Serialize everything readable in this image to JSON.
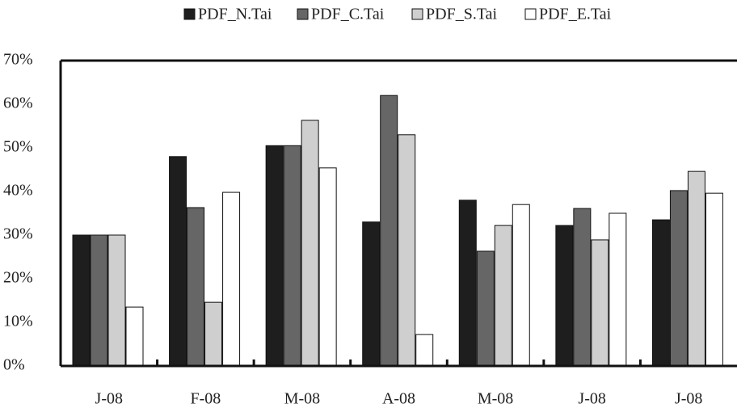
{
  "chart_data": {
    "type": "bar",
    "categories": [
      "J-08",
      "F-08",
      "M-08",
      "A-08",
      "M-08",
      "J-08",
      "J-08"
    ],
    "series": [
      {
        "name": "PDF_N.Tai",
        "color": "#1e1e1e",
        "values": [
          30,
          48,
          50.5,
          33,
          38,
          32.2,
          33.5
        ]
      },
      {
        "name": "PDF_C.Tai",
        "color": "#666666",
        "values": [
          30,
          36.3,
          50.5,
          62,
          26.3,
          36.1,
          40.2
        ]
      },
      {
        "name": "PDF_S.Tai",
        "color": "#cfcfcf",
        "values": [
          30,
          14.6,
          56.3,
          53,
          32.2,
          28.9,
          44.6
        ]
      },
      {
        "name": "PDF_E.Tai",
        "color": "#ffffff",
        "values": [
          13.5,
          39.8,
          45.4,
          7.2,
          37,
          35,
          39.6
        ]
      }
    ],
    "ylim": [
      0,
      70
    ],
    "yticks": [
      {
        "value": 0,
        "label": "0%"
      },
      {
        "value": 10,
        "label": "10%"
      },
      {
        "value": 20,
        "label": "20%"
      },
      {
        "value": 30,
        "label": "30%"
      },
      {
        "value": 40,
        "label": "40%"
      },
      {
        "value": 50,
        "label": "50%"
      },
      {
        "value": 60,
        "label": "60%"
      },
      {
        "value": 70,
        "label": "70%"
      }
    ],
    "grid": false,
    "legend": "top"
  }
}
